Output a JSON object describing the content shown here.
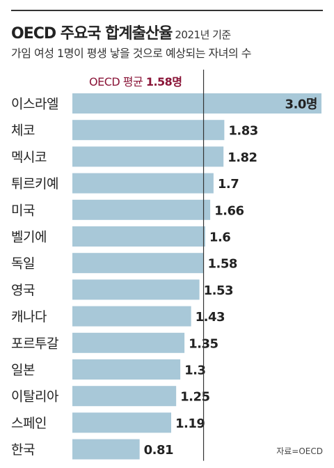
{
  "header": {
    "title": "OECD 주요국 합계출산율",
    "title_note": "2021년 기준",
    "subtitle": "가임 여성 1명이 평생 낳을 것으로 예상되는 자녀의 수"
  },
  "average": {
    "label_prefix": "OECD 평균",
    "label_value": "1.58명"
  },
  "source": "자료=OECD",
  "colors": {
    "bar": "#a8c8d8",
    "average_line": "#333333",
    "average_text": "#8a1538"
  },
  "chart_data": {
    "type": "bar",
    "orientation": "horizontal",
    "categories": [
      "이스라엘",
      "체코",
      "멕시코",
      "튀르키예",
      "미국",
      "벨기에",
      "독일",
      "영국",
      "캐나다",
      "포르투갈",
      "일본",
      "이탈리아",
      "스페인",
      "한국"
    ],
    "values": [
      3.0,
      1.83,
      1.82,
      1.7,
      1.66,
      1.6,
      1.58,
      1.53,
      1.43,
      1.35,
      1.3,
      1.25,
      1.19,
      0.81
    ],
    "value_labels": [
      "3.0명",
      "1.83",
      "1.82",
      "1.7",
      "1.66",
      "1.6",
      "1.58",
      "1.53",
      "1.43",
      "1.35",
      "1.3",
      "1.25",
      "1.19",
      "0.81"
    ],
    "reference_line": 1.58,
    "xlim": [
      0,
      3.0
    ],
    "grid": false
  }
}
